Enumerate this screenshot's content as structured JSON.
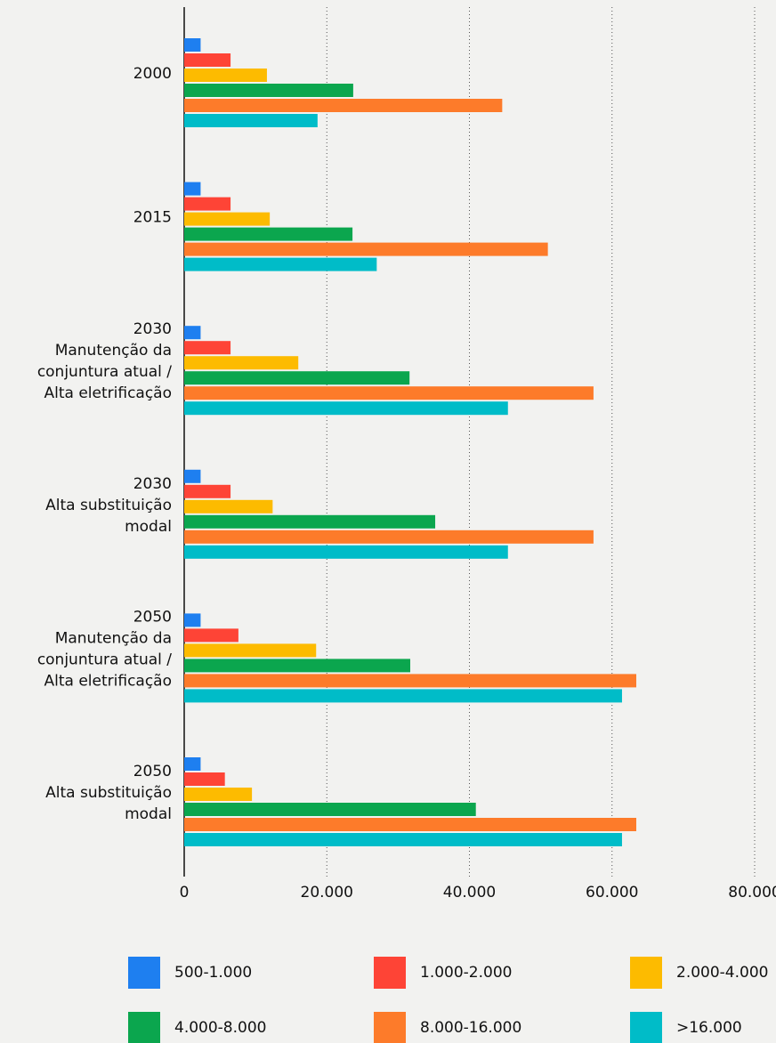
{
  "chart_data": {
    "type": "hbar",
    "categories": [
      [
        "2000"
      ],
      [
        "2015"
      ],
      [
        "2030",
        "Manutenção da",
        "conjuntura atual /",
        "Alta eletrificação"
      ],
      [
        "2030",
        "Alta substituição",
        "modal"
      ],
      [
        "2050",
        "Manutenção da",
        "conjuntura atual /",
        "Alta eletrificação"
      ],
      [
        "2050",
        "Alta substituição",
        "modal"
      ]
    ],
    "series": [
      {
        "name": "500-1.000",
        "color": "#1e7ff0",
        "values": [
          2300,
          2300,
          2300,
          2300,
          2300,
          2300
        ]
      },
      {
        "name": "1.000-2.000",
        "color": "#fe4436",
        "values": [
          6500,
          6500,
          6500,
          6500,
          7600,
          5700
        ]
      },
      {
        "name": "2.000-4.000",
        "color": "#fdbb00",
        "values": [
          11600,
          12000,
          16000,
          12400,
          18500,
          9500
        ]
      },
      {
        "name": "4.000-8.000",
        "color": "#0ba64e",
        "values": [
          23700,
          23600,
          31600,
          35200,
          31700,
          40900
        ]
      },
      {
        "name": "8.000-16.000",
        "color": "#fd7b2a",
        "values": [
          44600,
          51000,
          57400,
          57400,
          63400,
          63400
        ]
      },
      {
        "name": ">16.000",
        "color": "#00bcc8",
        "values": [
          18700,
          27000,
          45400,
          45400,
          61400,
          61400
        ]
      }
    ],
    "xlim": [
      0,
      80000
    ],
    "xticks": [
      0,
      {
        "value": 20000,
        "label": "20.000"
      },
      {
        "value": 40000,
        "label": "40.000"
      },
      {
        "value": 60000,
        "label": "60.000"
      },
      {
        "value": 80000,
        "label": "80.000"
      }
    ],
    "grid": true
  }
}
